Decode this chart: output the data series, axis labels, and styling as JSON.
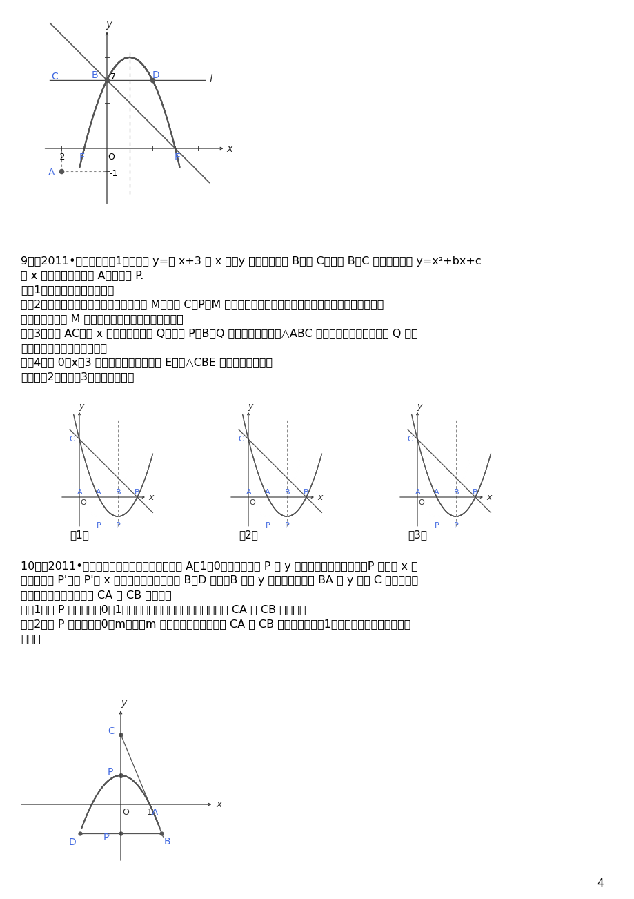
{
  "bg_color": "#ffffff",
  "text_color": "#000000",
  "axis_color": "#333333",
  "curve_color": "#555555",
  "label_color": "#4169e1",
  "page_number": "4",
  "problem9_lines": [
    "9．（2011•营口）如图（1），直线 y=－ x+3 与 x 轴、y 轴分别交于点 B、点 C，经过 B、C 两点的抛物线 y=x²+bx+c",
    "与 x 轴的另一个交点为 A，顶点为 P.",
    "　（1）求该抛物线的解析式；",
    "　（2）在该抛物线的对称轴上是否存在点 M，使以 C、P、M 为顶点的三角形为等腰三角形？若存在，请直接写出所",
    "有符合条件的点 M 的坐标；若不存在，请说明理由；",
    "　（3）连接 AC，在 x 轴上是否存在点 Q，使以 P、B、Q 为顶点的三角形与△ABC 相似？若存在，请求出点 Q 的坐",
    "标；若不存在，请说明理由；",
    "　（4）当 0＜x＜3 时，在抛物线上求一点 E，使△CBE 的面积有最大值．",
    "　（图（2）、图（3）供画图探究）"
  ],
  "problem10_lines": [
    "10．（2011•益阳）如图，已知抛物线经过定点 A（1，0），它的顶点 P 是 y 轴正半轴上的一个动点，P 点关于 x 轴",
    "的对称点为 P'，过 P'作 x 轴的平行线交抛物线于 B、D 两点（B 点在 y 轴右侧），直线 BA 交 y 轴于 C 点．按从特",
    "殊到一般的规律探究线段 CA 与 CB 的比值：",
    "　（1）当 P 点坐标为（0，1）时，写出抛物线的解析式并求线段 CA 与 CB 的比值；",
    "　（2）若 P 点坐标为（0，m）时（m 为任意正实数），线段 CA 与 CB 的比值是否与（1）所求的比值相同？请说明",
    "理由．"
  ]
}
